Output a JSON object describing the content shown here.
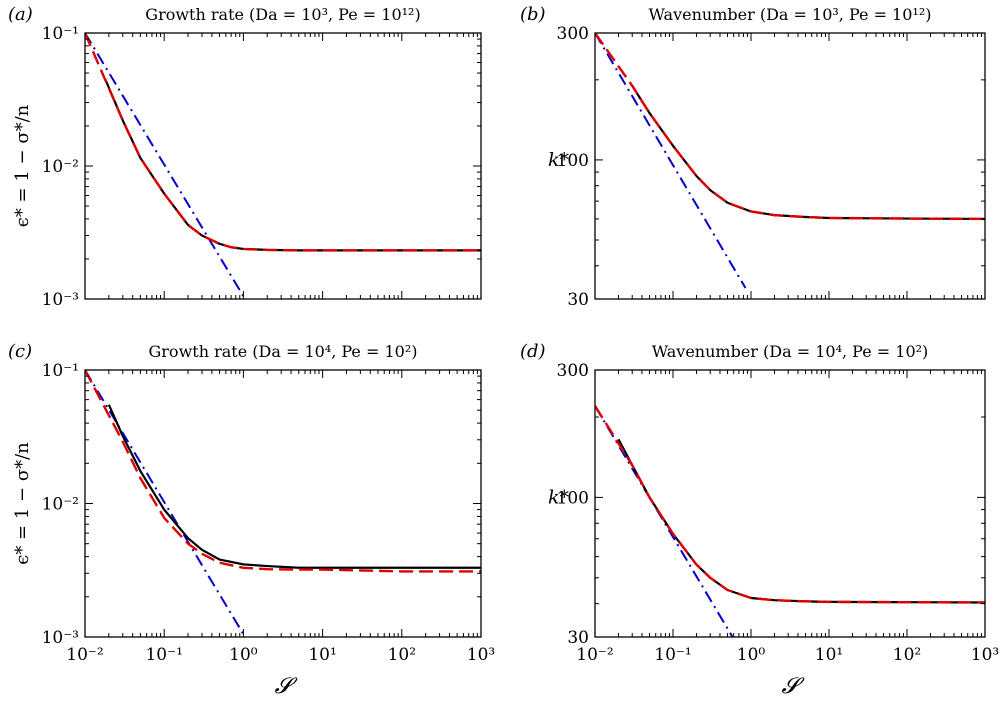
{
  "figure": {
    "xlabel": "𝓢"
  },
  "panels_text": [
    {
      "letter": "(a)",
      "title": "Growth rate (Da = 10³, Pe = 10¹²)",
      "ylabel": "ϵ* = 1 − σ*/n"
    },
    {
      "letter": "(b)",
      "title": "Wavenumber (Da = 10³, Pe = 10¹²)",
      "ylabel": "k*"
    },
    {
      "letter": "(c)",
      "title": "Growth rate (Da = 10⁴, Pe = 10²)",
      "ylabel": "ϵ* = 1 − σ*/n"
    },
    {
      "letter": "(d)",
      "title": "Wavenumber (Da = 10⁴, Pe = 10²)",
      "ylabel": "k*"
    }
  ],
  "chart_data": [
    {
      "type": "line",
      "title": "Growth rate (Da = 10³, Pe = 10¹²)",
      "panel_label": "(a)",
      "xlabel": "",
      "ylabel": "ϵ* = 1 − σ*/n",
      "xscale": "log",
      "yscale": "log",
      "xlim": [
        0.01,
        1000
      ],
      "ylim": [
        0.001,
        0.1
      ],
      "xticks": [
        0.01,
        0.1,
        1,
        10,
        100,
        1000
      ],
      "xtick_labels": [],
      "yticks": [
        0.001,
        0.01,
        0.1
      ],
      "ytick_labels": [
        "10⁻³",
        "10⁻²",
        "10⁻¹"
      ],
      "series": [
        {
          "style": "solid",
          "color": "#000000",
          "x": [
            0.018,
            0.03,
            0.05,
            0.1,
            0.2,
            0.3,
            0.5,
            0.7,
            1,
            2,
            5,
            10,
            100,
            1000
          ],
          "y": [
            0.045,
            0.022,
            0.0115,
            0.0062,
            0.0036,
            0.003,
            0.0026,
            0.00245,
            0.00238,
            0.00234,
            0.00232,
            0.00232,
            0.00232,
            0.00232
          ]
        },
        {
          "style": "dashed",
          "color": "#dd0000",
          "x": [
            0.01,
            0.03,
            0.05,
            0.1,
            0.2,
            0.3,
            0.5,
            0.7,
            1,
            2,
            5,
            10,
            100,
            1000
          ],
          "y": [
            0.1,
            0.022,
            0.0115,
            0.0062,
            0.0036,
            0.003,
            0.0026,
            0.00245,
            0.00238,
            0.00234,
            0.00232,
            0.00232,
            0.00232,
            0.00232
          ]
        },
        {
          "style": "dashdot",
          "color": "#0000cc",
          "x": [
            0.01,
            1.05
          ],
          "y": [
            0.1,
            0.001
          ]
        }
      ]
    },
    {
      "type": "line",
      "title": "Wavenumber (Da = 10³, Pe = 10¹²)",
      "panel_label": "(b)",
      "xlabel": "",
      "ylabel": "k*",
      "xscale": "log",
      "yscale": "log",
      "xlim": [
        0.01,
        1000
      ],
      "ylim": [
        30,
        300
      ],
      "xticks": [
        0.01,
        0.1,
        1,
        10,
        100,
        1000
      ],
      "xtick_labels": [],
      "yticks": [
        30,
        100,
        300
      ],
      "ytick_labels": [
        "30",
        "100",
        "300"
      ],
      "series": [
        {
          "style": "solid",
          "color": "#000000",
          "x": [
            0.03,
            0.05,
            0.1,
            0.2,
            0.3,
            0.5,
            1,
            2,
            5,
            10,
            100,
            1000
          ],
          "y": [
            190,
            150,
            113,
            87,
            77,
            69,
            64,
            62,
            61,
            60.5,
            60.2,
            60
          ],
          "comment": ""
        },
        {
          "style": "dashed",
          "color": "#dd0000",
          "x": [
            0.01,
            0.03,
            0.05,
            0.1,
            0.2,
            0.3,
            0.5,
            1,
            2,
            5,
            10,
            100,
            1000
          ],
          "y": [
            300,
            190,
            150,
            113,
            87,
            77,
            69,
            64,
            62,
            61,
            60.5,
            60.2,
            60
          ]
        },
        {
          "style": "dashdot",
          "color": "#0000cc",
          "x": [
            0.01,
            0.85
          ],
          "y": [
            300,
            33
          ]
        }
      ]
    },
    {
      "type": "line",
      "title": "Growth rate (Da = 10⁴, Pe = 10²)",
      "panel_label": "(c)",
      "xlabel": "𝓢",
      "ylabel": "ϵ* = 1 − σ*/n",
      "xscale": "log",
      "yscale": "log",
      "xlim": [
        0.01,
        1000
      ],
      "ylim": [
        0.001,
        0.1
      ],
      "xticks": [
        0.01,
        0.1,
        1,
        10,
        100,
        1000
      ],
      "xtick_labels": [
        "10⁻²",
        "10⁻¹",
        "10⁰",
        "10¹",
        "10²",
        "10³"
      ],
      "yticks": [
        0.001,
        0.01,
        0.1
      ],
      "ytick_labels": [
        "10⁻³",
        "10⁻²",
        "10⁻¹"
      ],
      "series": [
        {
          "style": "solid",
          "color": "#000000",
          "x": [
            0.02,
            0.03,
            0.05,
            0.1,
            0.2,
            0.3,
            0.5,
            1,
            2,
            5,
            10,
            100,
            1000
          ],
          "y": [
            0.055,
            0.032,
            0.0175,
            0.009,
            0.0055,
            0.0045,
            0.0038,
            0.0035,
            0.0034,
            0.0033,
            0.0033,
            0.0033,
            0.0033
          ]
        },
        {
          "style": "dashed",
          "color": "#dd0000",
          "x": [
            0.01,
            0.03,
            0.05,
            0.1,
            0.2,
            0.3,
            0.5,
            1,
            2,
            5,
            10,
            100,
            1000
          ],
          "y": [
            0.1,
            0.029,
            0.0155,
            0.0078,
            0.005,
            0.0042,
            0.0036,
            0.0033,
            0.00322,
            0.0032,
            0.0032,
            0.0031,
            0.0031
          ]
        },
        {
          "style": "dashdot",
          "color": "#0000cc",
          "x": [
            0.01,
            1.05
          ],
          "y": [
            0.1,
            0.001
          ]
        }
      ]
    },
    {
      "type": "line",
      "title": "Wavenumber (Da = 10⁴, Pe = 10²)",
      "panel_label": "(d)",
      "xlabel": "𝓢",
      "ylabel": "k*",
      "xscale": "log",
      "yscale": "log",
      "xlim": [
        0.01,
        1000
      ],
      "ylim": [
        30,
        300
      ],
      "xticks": [
        0.01,
        0.1,
        1,
        10,
        100,
        1000
      ],
      "xtick_labels": [
        "10⁻²",
        "10⁻¹",
        "10⁰",
        "10¹",
        "10²",
        "10³"
      ],
      "yticks": [
        30,
        100,
        300
      ],
      "ytick_labels": [
        "30",
        "100",
        "300"
      ],
      "series": [
        {
          "style": "solid",
          "color": "#000000",
          "x": [
            0.02,
            0.03,
            0.05,
            0.1,
            0.2,
            0.3,
            0.5,
            1,
            2,
            5,
            10,
            100,
            1000
          ],
          "y": [
            165,
            132,
            100,
            73,
            56,
            50,
            45,
            42,
            41.2,
            40.8,
            40.6,
            40.5,
            40.4
          ]
        },
        {
          "style": "dashed",
          "color": "#dd0000",
          "x": [
            0.01,
            0.03,
            0.05,
            0.1,
            0.2,
            0.3,
            0.5,
            1,
            2,
            5,
            10,
            100,
            1000
          ],
          "y": [
            220,
            132,
            100,
            73,
            56,
            50,
            45,
            42,
            41.2,
            40.8,
            40.6,
            40.5,
            40.4
          ]
        },
        {
          "style": "dashdot",
          "color": "#0000cc",
          "x": [
            0.01,
            0.58
          ],
          "y": [
            220,
            30
          ]
        }
      ]
    }
  ]
}
